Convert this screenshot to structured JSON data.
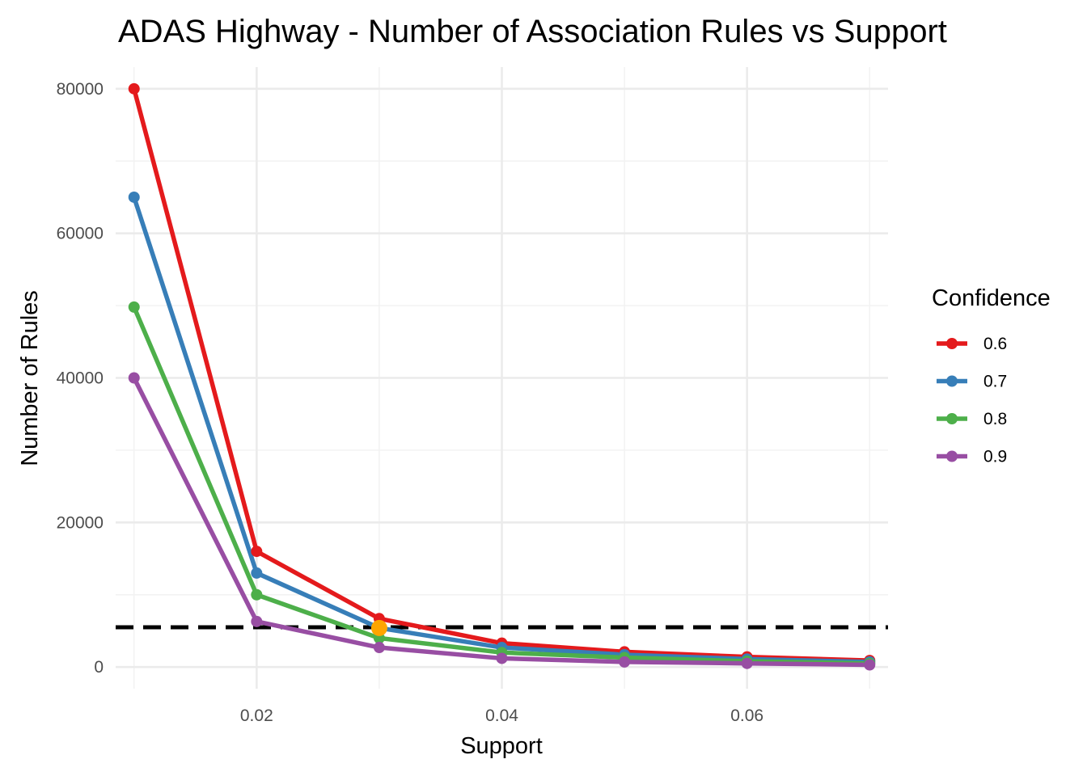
{
  "chart_data": {
    "type": "line",
    "title": "ADAS Highway - Number of Association Rules vs Support",
    "xlabel": "Support",
    "ylabel": "Number of Rules",
    "x": [
      0.01,
      0.02,
      0.03,
      0.04,
      0.05,
      0.06,
      0.07
    ],
    "xlim": [
      0.0085,
      0.0715
    ],
    "ylim": [
      -3000,
      83000
    ],
    "x_ticks": [
      0.02,
      0.04,
      0.06
    ],
    "x_tick_labels": [
      "0.02",
      "0.04",
      "0.06"
    ],
    "y_ticks": [
      0,
      20000,
      40000,
      60000,
      80000
    ],
    "y_tick_labels": [
      "0",
      "20000",
      "40000",
      "60000",
      "80000"
    ],
    "grid": true,
    "legend": {
      "title": "Confidence",
      "placement": "right"
    },
    "series": [
      {
        "name": "0.6",
        "color": "#e41a1c",
        "values": [
          80000,
          16000,
          6700,
          3300,
          2100,
          1400,
          900
        ]
      },
      {
        "name": "0.7",
        "color": "#377eb8",
        "values": [
          65000,
          13000,
          5400,
          2700,
          1700,
          1100,
          700
        ]
      },
      {
        "name": "0.8",
        "color": "#4daf4a",
        "values": [
          49800,
          10000,
          4000,
          2000,
          1300,
          800,
          500
        ]
      },
      {
        "name": "0.9",
        "color": "#984ea3",
        "values": [
          40000,
          6300,
          2700,
          1200,
          700,
          500,
          300
        ]
      }
    ],
    "threshold_line": {
      "y": 5500,
      "color": "#000000",
      "style": "dashed"
    },
    "highlight_point": {
      "x": 0.03,
      "y": 5400,
      "color": "#ffa500"
    }
  }
}
